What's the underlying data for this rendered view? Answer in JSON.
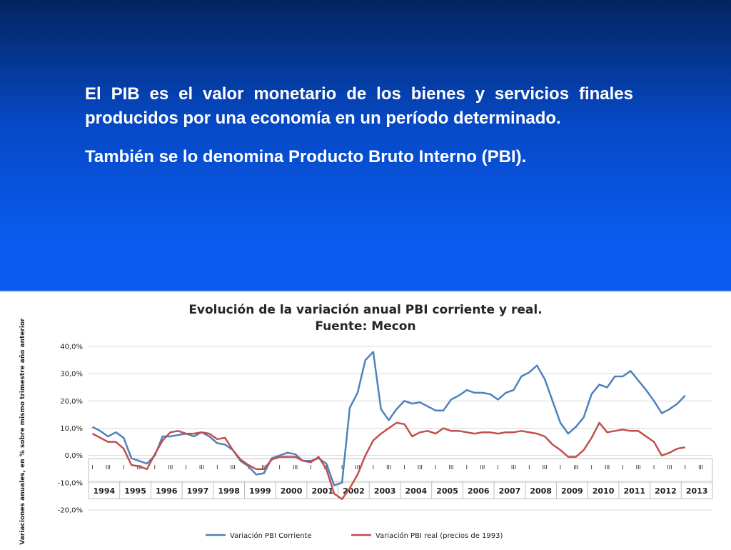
{
  "slide": {
    "paragraph1": "El PIB es el valor monetario de los bienes y servicios finales producidos por una economía en un período determinado.",
    "paragraph2": "También se lo denomina Producto Bruto Interno (PBI)."
  },
  "colors": {
    "series_corriente": "#4f81bd",
    "series_real": "#c0504d",
    "background_top": "#04245f",
    "background_bottom": "#0a5df2"
  },
  "chart_data": {
    "type": "line",
    "title": "Evolución de la variación anual PBI corriente y real.",
    "subtitle": "Fuente: Mecon",
    "ylabel": "Variaciones anuales, en % sobre mismo trimestre año anterior",
    "ylim": [
      -20,
      40
    ],
    "yticks": [
      "40,0%",
      "30,0%",
      "20,0%",
      "10,0%",
      "0,0%",
      "-10,0%",
      "-20,0%"
    ],
    "grid": true,
    "legend_position": "bottom",
    "years": [
      "1994",
      "1995",
      "1996",
      "1997",
      "1998",
      "1999",
      "2000",
      "2001",
      "2002",
      "2003",
      "2004",
      "2005",
      "2006",
      "2007",
      "2008",
      "2009",
      "2010",
      "2011",
      "2012",
      "2013"
    ],
    "quarter_labels": [
      "I",
      "III"
    ],
    "series": [
      {
        "name": "Variación PBI Corriente",
        "values": [
          10.5,
          9,
          7,
          8.5,
          6.5,
          -1,
          -2,
          -3,
          0,
          7,
          7,
          7.5,
          8,
          7,
          8.5,
          7,
          4.5,
          4,
          2,
          -2,
          -4,
          -7,
          -6.5,
          -1,
          0,
          1,
          0.5,
          -2,
          -2,
          -1,
          -3,
          -11,
          -10,
          17.5,
          23,
          35,
          38,
          17,
          13,
          17,
          20,
          19,
          19.5,
          18,
          16.5,
          16.5,
          20.5,
          22,
          24,
          23,
          23,
          22.5,
          20.5,
          23,
          24,
          29,
          30.5,
          33,
          28,
          20,
          12,
          8,
          10.5,
          14,
          22.5,
          26,
          25,
          29,
          29,
          31,
          27.5,
          24,
          20,
          15.5,
          17,
          19,
          22
        ]
      },
      {
        "name": "Variación PBI real (precios de 1993)",
        "values": [
          8,
          6.5,
          5,
          5,
          2.5,
          -3.5,
          -4,
          -5,
          0.5,
          5.5,
          8.5,
          9,
          8,
          8,
          8.5,
          8,
          6,
          6.5,
          2,
          -1.5,
          -3.5,
          -5,
          -5,
          -1.5,
          -0.5,
          -0.5,
          -0.5,
          -2,
          -2.5,
          -0.5,
          -5,
          -14,
          -16,
          -12,
          -7,
          0,
          5.5,
          8,
          10,
          12,
          11.5,
          7,
          8.5,
          9,
          8,
          10,
          9,
          9,
          8.5,
          8,
          8.5,
          8.5,
          8,
          8.5,
          8.5,
          9,
          8.5,
          8,
          7,
          4,
          2,
          -0.5,
          -0.5,
          2,
          6.5,
          12,
          8.5,
          9,
          9.5,
          9,
          9,
          7,
          5,
          0,
          1,
          2.5,
          3
        ]
      }
    ]
  }
}
